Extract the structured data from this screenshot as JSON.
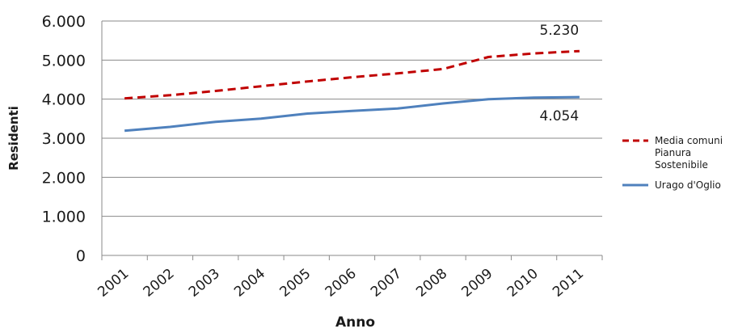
{
  "chart_data": {
    "type": "line",
    "title": "",
    "xlabel": "Anno",
    "ylabel": "Residenti",
    "categories": [
      "2001",
      "2002",
      "2003",
      "2004",
      "2005",
      "2006",
      "2007",
      "2008",
      "2009",
      "2010",
      "2011"
    ],
    "y_ticks": [
      "0",
      "1.000",
      "2.000",
      "3.000",
      "4.000",
      "5.000",
      "6.000"
    ],
    "ylim": [
      0,
      6000
    ],
    "grid": true,
    "legend_position": "right",
    "series": [
      {
        "name": "Media comuni Pianura Sostenibile",
        "name_lines": [
          "Media comuni",
          "Pianura",
          "Sostenibile"
        ],
        "style": "dashed",
        "color": "#c00000",
        "values": [
          4020,
          4100,
          4210,
          4330,
          4450,
          4560,
          4660,
          4770,
          5080,
          5170,
          5230
        ],
        "end_label": "5.230"
      },
      {
        "name": "Urago  d'Oglio",
        "name_lines": [
          "Urago  d'Oglio"
        ],
        "style": "solid",
        "color": "#4f81bd",
        "values": [
          3190,
          3290,
          3420,
          3500,
          3630,
          3700,
          3760,
          3890,
          4000,
          4040,
          4054
        ],
        "end_label": "4.054"
      }
    ]
  }
}
